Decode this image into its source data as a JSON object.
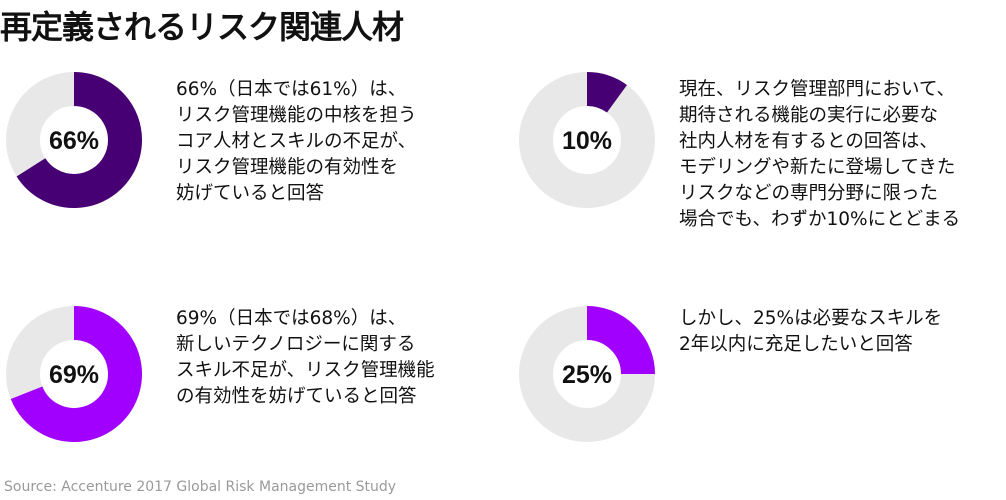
{
  "title": "再定義されるリスク関連人材",
  "source": "Source: Accenture 2017 Global Risk Management Study",
  "colors": {
    "track": "#e8e8e8",
    "dark_purple": "#460073",
    "bright_purple": "#a100ff",
    "text": "#111111",
    "source_text": "#9a9a9a"
  },
  "chart_data": [
    {
      "type": "pie",
      "style": "donut",
      "value": 66,
      "label": "66%",
      "color": "#460073",
      "description": [
        "66%（日本では61%）は、",
        "リスク管理機能の中核を担う",
        "コア人材とスキルの不足が、",
        "リスク管理機能の有効性を",
        "妨げていると回答"
      ]
    },
    {
      "type": "pie",
      "style": "donut",
      "value": 10,
      "label": "10%",
      "color": "#460073",
      "description": [
        "現在、リスク管理部門において、",
        "期待される機能の実行に必要な",
        "社内人材を有するとの回答は、",
        "モデリングや新たに登場してきた",
        "リスクなどの専門分野に限った",
        "場合でも、わずか10%にとどまる"
      ]
    },
    {
      "type": "pie",
      "style": "donut",
      "value": 69,
      "label": "69%",
      "color": "#a100ff",
      "description": [
        "69%（日本では68%）は、",
        "新しいテクノロジーに関する",
        "スキル不足が、リスク管理機能",
        "の有効性を妨げていると回答"
      ]
    },
    {
      "type": "pie",
      "style": "donut",
      "value": 25,
      "label": "25%",
      "color": "#a100ff",
      "description": [
        "しかし、25%は必要なスキルを",
        "2年以内に充足したいと回答"
      ]
    }
  ]
}
